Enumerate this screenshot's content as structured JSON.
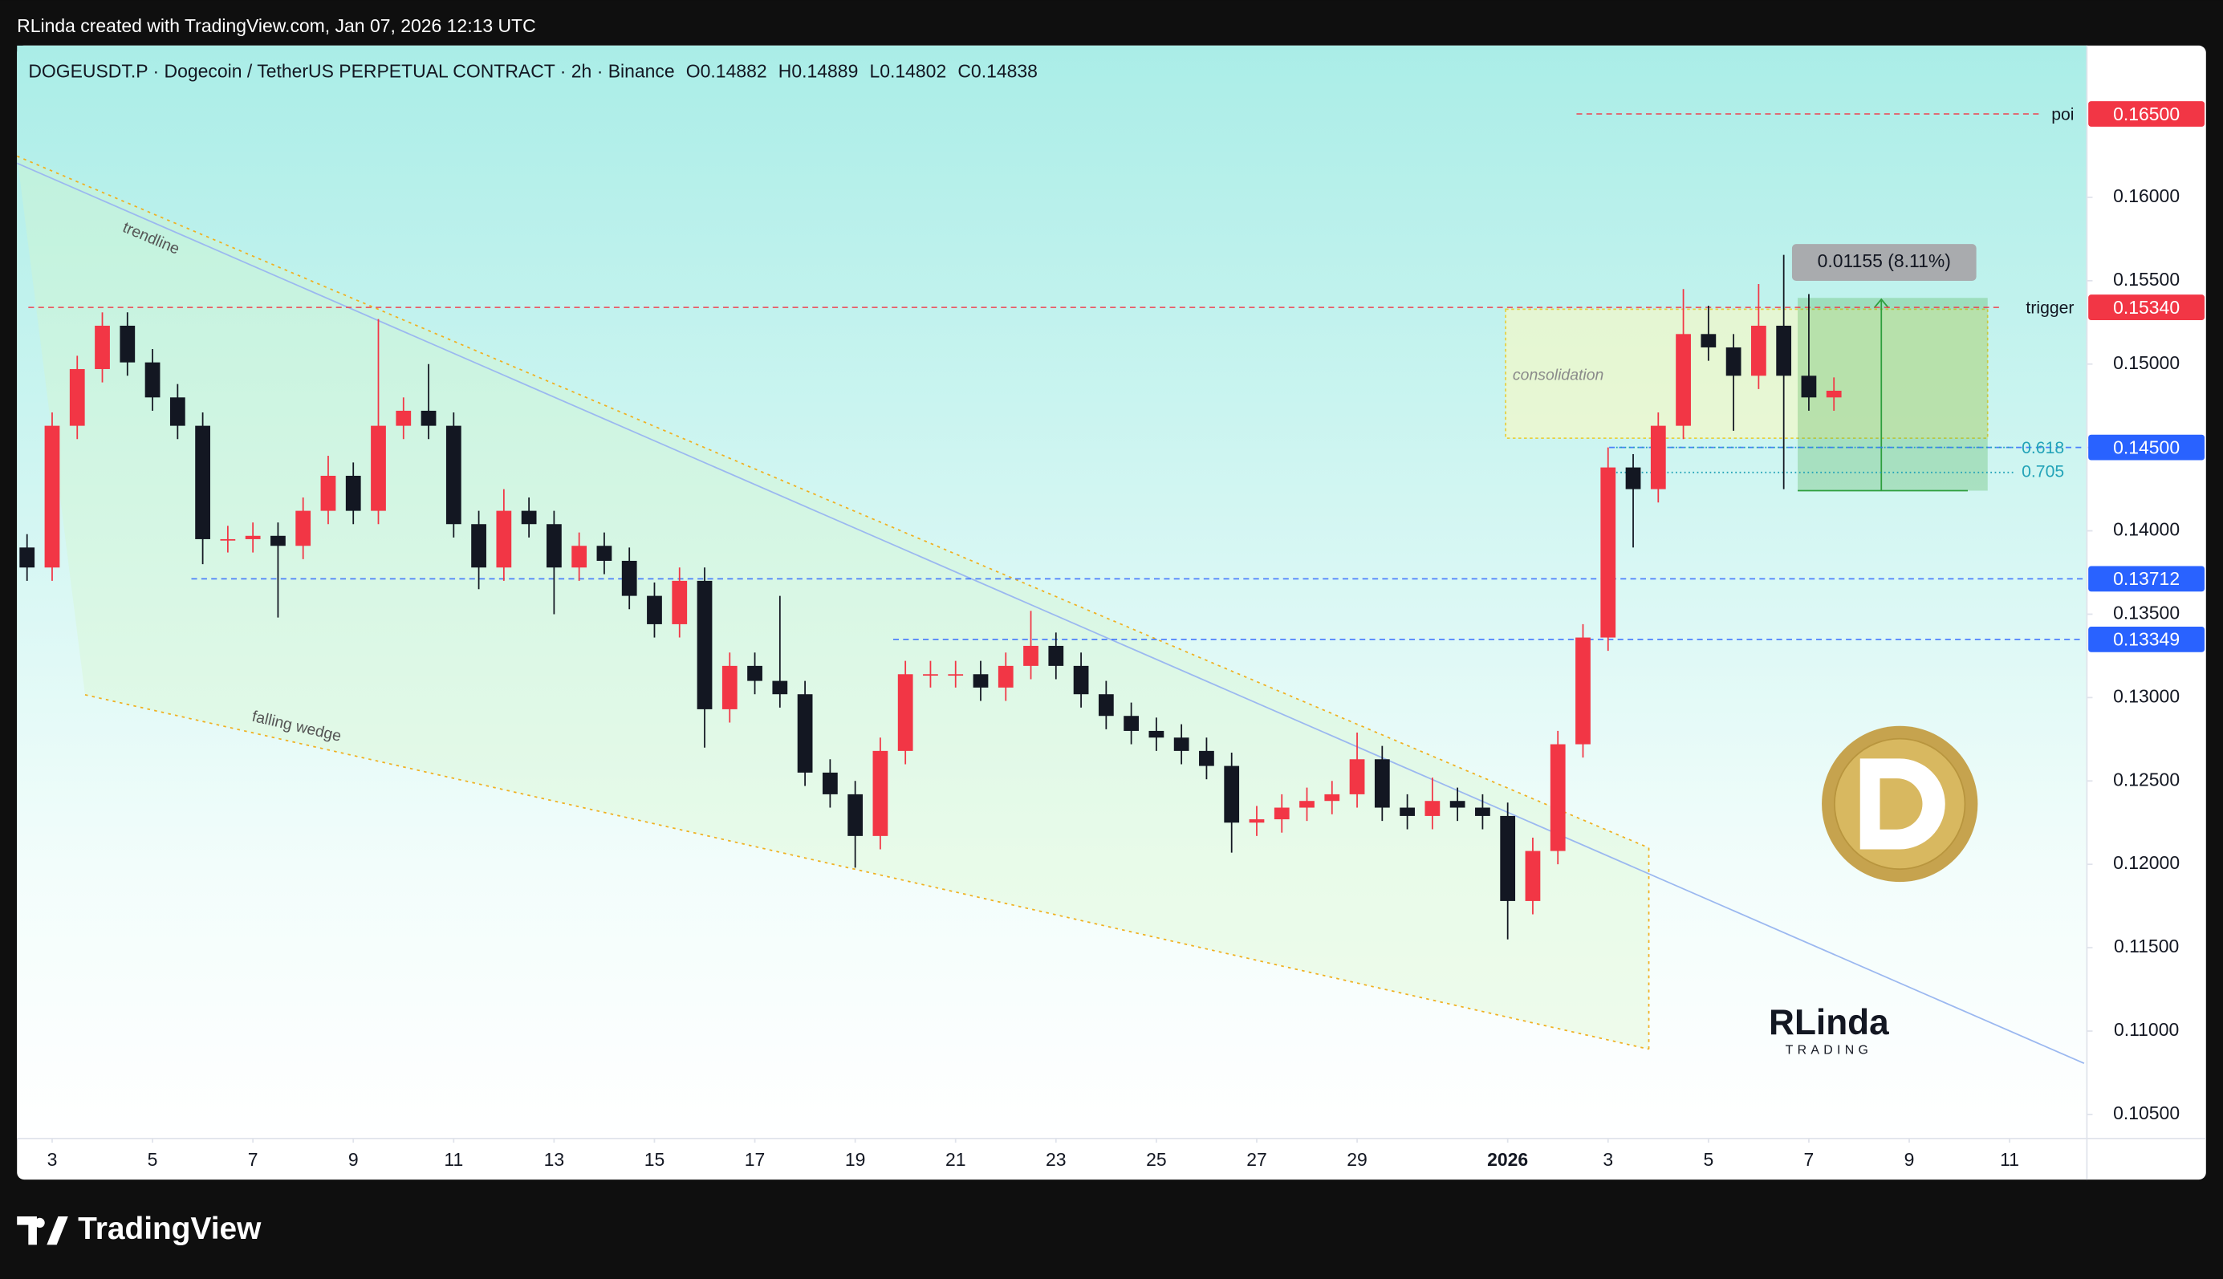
{
  "header": {
    "credit": "RLinda created with TradingView.com, Jan 07, 2026 12:13 UTC"
  },
  "footer": {
    "brand": "TradingView"
  },
  "chart_data": {
    "type": "candlestick",
    "title": "DOGEUSDT.P · Dogecoin / TetherUS PERPETUAL CONTRACT · 2h · Binance",
    "ohlc": [
      {
        "label": "O",
        "value": 0.14882
      },
      {
        "label": "H",
        "value": 0.14889
      },
      {
        "label": "L",
        "value": 0.14802
      },
      {
        "label": "C",
        "value": 0.14838
      }
    ],
    "up_color": "#f23645",
    "down_color": "#131722",
    "x": [
      2.5,
      3,
      3.5,
      4,
      4.5,
      5,
      5.5,
      6,
      6.5,
      7,
      7.5,
      8,
      8.5,
      9,
      9.5,
      10,
      10.5,
      11,
      11.5,
      12,
      12.5,
      13,
      13.5,
      14,
      14.5,
      15,
      15.5,
      16,
      16.5,
      17,
      17.5,
      18,
      18.5,
      19,
      19.5,
      20,
      20.5,
      21,
      21.5,
      22,
      22.5,
      23,
      23.5,
      24,
      24.5,
      25,
      25.5,
      26,
      26.5,
      27,
      27.5,
      28,
      28.5,
      29,
      29.5,
      30,
      30.5,
      31,
      31.5,
      32,
      32.5,
      33,
      33.5,
      34,
      34.5,
      35,
      35.5,
      36,
      36.5,
      37,
      37.5,
      38,
      38.5
    ],
    "open": [
      0.139,
      0.1378,
      0.1463,
      0.1497,
      0.1523,
      0.1501,
      0.148,
      0.1463,
      0.1395,
      0.1395,
      0.1397,
      0.1391,
      0.1412,
      0.1433,
      0.1412,
      0.1463,
      0.1472,
      0.1463,
      0.1404,
      0.1378,
      0.1412,
      0.1404,
      0.1378,
      0.1391,
      0.1382,
      0.1361,
      0.1344,
      0.137,
      0.1293,
      0.1319,
      0.131,
      0.1302,
      0.1255,
      0.1242,
      0.1217,
      0.1268,
      0.1314,
      0.1314,
      0.1314,
      0.1306,
      0.1319,
      0.1331,
      0.1319,
      0.1302,
      0.1289,
      0.128,
      0.1276,
      0.1268,
      0.1259,
      0.1225,
      0.1227,
      0.1234,
      0.1238,
      0.1242,
      0.1263,
      0.1234,
      0.1229,
      0.1238,
      0.1234,
      0.1229,
      0.1178,
      0.1208,
      0.1272,
      0.1336,
      0.1438,
      0.1425,
      0.1463,
      0.1518,
      0.151,
      0.1493,
      0.1523,
      0.1493,
      0.148
    ],
    "high": [
      0.1398,
      0.1471,
      0.1505,
      0.1531,
      0.1531,
      0.1509,
      0.1488,
      0.1471,
      0.1403,
      0.1405,
      0.1405,
      0.142,
      0.1445,
      0.1441,
      0.1527,
      0.148,
      0.15,
      0.1471,
      0.1412,
      0.1425,
      0.142,
      0.1412,
      0.1399,
      0.1399,
      0.139,
      0.1369,
      0.1378,
      0.1378,
      0.1327,
      0.1327,
      0.1361,
      0.131,
      0.1263,
      0.125,
      0.1276,
      0.1322,
      0.1322,
      0.1322,
      0.1322,
      0.1327,
      0.1352,
      0.1339,
      0.1327,
      0.131,
      0.1297,
      0.1288,
      0.1284,
      0.1276,
      0.1267,
      0.1235,
      0.1242,
      0.1246,
      0.125,
      0.1279,
      0.1271,
      0.1242,
      0.1252,
      0.1246,
      0.1242,
      0.1237,
      0.1216,
      0.128,
      0.1344,
      0.145,
      0.1446,
      0.1471,
      0.1545,
      0.1535,
      0.1518,
      0.1548,
      0.15655,
      0.1542,
      0.1492
    ],
    "low": [
      0.137,
      0.137,
      0.1455,
      0.1489,
      0.1493,
      0.1472,
      0.1455,
      0.138,
      0.1387,
      0.1387,
      0.1348,
      0.1383,
      0.1404,
      0.1404,
      0.1404,
      0.1455,
      0.1455,
      0.1396,
      0.1365,
      0.137,
      0.1396,
      0.135,
      0.137,
      0.1374,
      0.1353,
      0.1336,
      0.1336,
      0.127,
      0.1285,
      0.1302,
      0.1294,
      0.1247,
      0.1234,
      0.1198,
      0.1209,
      0.126,
      0.1306,
      0.1306,
      0.1298,
      0.1298,
      0.1311,
      0.1311,
      0.1294,
      0.1281,
      0.1272,
      0.1268,
      0.126,
      0.1251,
      0.1207,
      0.1217,
      0.1219,
      0.1226,
      0.123,
      0.1234,
      0.1226,
      0.1221,
      0.1221,
      0.1226,
      0.1221,
      0.1155,
      0.117,
      0.12,
      0.1264,
      0.1328,
      0.139,
      0.1417,
      0.1455,
      0.1502,
      0.146,
      0.1485,
      0.1425,
      0.1472,
      0.1472
    ],
    "close": [
      0.1378,
      0.1463,
      0.1497,
      0.1523,
      0.1501,
      0.148,
      0.1463,
      0.1395,
      0.1395,
      0.1397,
      0.1391,
      0.1412,
      0.1433,
      0.1412,
      0.1463,
      0.1472,
      0.1463,
      0.1404,
      0.1378,
      0.1412,
      0.1404,
      0.1378,
      0.1391,
      0.1382,
      0.1361,
      0.1344,
      0.137,
      0.1293,
      0.1319,
      0.131,
      0.1302,
      0.1255,
      0.1242,
      0.1217,
      0.1268,
      0.1314,
      0.1314,
      0.1314,
      0.1306,
      0.1319,
      0.1331,
      0.1319,
      0.1302,
      0.1289,
      0.128,
      0.1276,
      0.1268,
      0.1259,
      0.1225,
      0.1227,
      0.1234,
      0.1238,
      0.1242,
      0.1263,
      0.1234,
      0.1229,
      0.1238,
      0.1234,
      0.1229,
      0.1178,
      0.1208,
      0.1272,
      0.1336,
      0.1438,
      0.1425,
      0.1463,
      0.1518,
      0.151,
      0.1493,
      0.1523,
      0.1493,
      0.148,
      0.1484
    ],
    "xlim": [
      2.3,
      43.54
    ],
    "xticks": [
      3,
      5,
      7,
      9,
      11,
      13,
      15,
      17,
      19,
      21,
      23,
      25,
      27,
      29,
      {
        "value": 32,
        "label": "2026"
      },
      {
        "value": 34,
        "label": "3"
      },
      {
        "value": 36,
        "label": "5"
      },
      {
        "value": 38,
        "label": "7"
      },
      {
        "value": 40,
        "label": "9"
      },
      {
        "value": 42,
        "label": "11"
      }
    ],
    "ylim": [
      0.10356,
      0.1691
    ],
    "yticks": [
      {
        "value": 0.105,
        "label": "0.10500"
      },
      {
        "value": 0.11,
        "label": "0.11000"
      },
      {
        "value": 0.115,
        "label": "0.11500"
      },
      {
        "value": 0.12,
        "label": "0.12000"
      },
      {
        "value": 0.125,
        "label": "0.12500"
      },
      {
        "value": 0.13,
        "label": "0.13000"
      },
      {
        "value": 0.135,
        "label": "0.13500"
      },
      {
        "value": 0.14,
        "label": "0.14000"
      },
      {
        "value": 0.145,
        "label": "0.14500"
      },
      {
        "value": 0.15,
        "label": "0.15000"
      },
      {
        "value": 0.155,
        "label": "0.15500"
      },
      {
        "value": 0.16,
        "label": "0.16000"
      }
    ],
    "grid": false,
    "levels": [
      {
        "name": "poi",
        "value": 0.165,
        "value_label": "0.16500",
        "color": "#f23645"
      },
      {
        "name": "trigger",
        "value": 0.1534,
        "value_label": "0.15340",
        "color": "#f23645"
      },
      {
        "value": 0.145,
        "value_label": "0.14500",
        "color": "#2962ff"
      },
      {
        "value": 0.13712,
        "value_label": "0.13712",
        "color": "#2962ff"
      },
      {
        "value": 0.13349,
        "value_label": "0.13349",
        "color": "#2962ff"
      }
    ],
    "fib": [
      {
        "ratio": 0.618,
        "value": 0.145
      },
      {
        "ratio": 0.705,
        "value": 0.1435
      }
    ],
    "annotations": {
      "trendline": "trendline",
      "falling_wedge": "falling wedge",
      "consolidation": "consolidation",
      "measure": "0.01155 (8.11%)"
    },
    "watermark": {
      "name": "RLinda",
      "tagline": "TRADING"
    }
  }
}
